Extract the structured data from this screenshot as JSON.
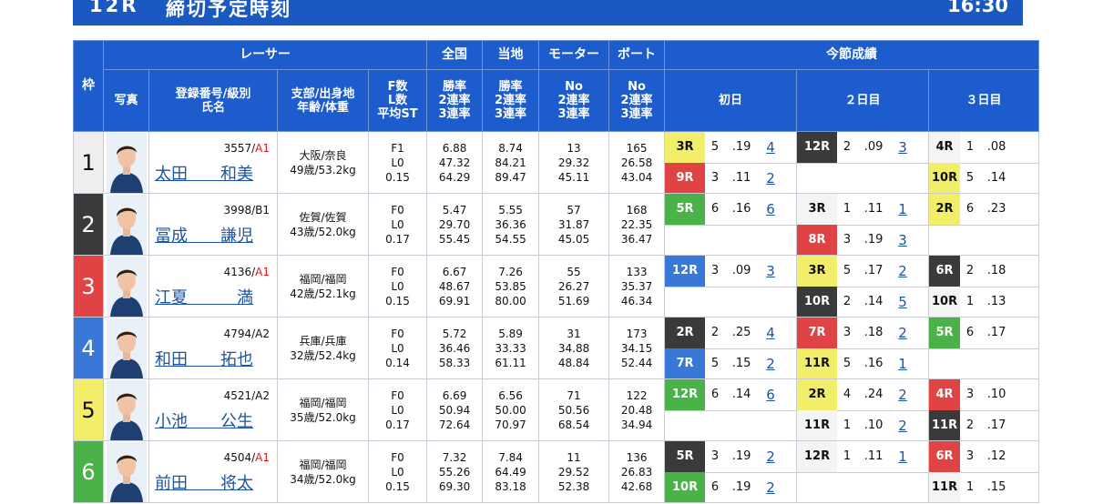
{
  "header": {
    "race": "12R",
    "deadline_label": "締切予定時刻",
    "time": "16:30"
  },
  "table": {
    "col_waku": "枠",
    "grp_racer": "レーサー",
    "grp_national": "全国",
    "grp_local": "当地",
    "grp_motor": "モーター",
    "grp_boat": "ボート",
    "grp_current": "今節成績",
    "h_photo": "写真",
    "h_reg": [
      "登録番号/級別",
      "氏名"
    ],
    "h_branch": [
      "支部/出身地",
      "年齢/体重"
    ],
    "h_f": [
      "F数",
      "L数",
      "平均ST"
    ],
    "h_nat": [
      "勝率",
      "2連率",
      "3連率"
    ],
    "h_loc": [
      "勝率",
      "2連率",
      "3連率"
    ],
    "h_mot": [
      "No",
      "2連率",
      "3連率"
    ],
    "h_boat": [
      "No",
      "2連率",
      "3連率"
    ],
    "h_day1": "初日",
    "h_day2": "２日目",
    "h_day3": "３日目"
  },
  "colors": {
    "w1": "#eeeeee",
    "w2": "#3a3a3a",
    "w3": "#e04343",
    "w4": "#3978d6",
    "w5": "#f2ee6a",
    "w6": "#4bb24a"
  },
  "racers": [
    {
      "waku": "1",
      "num": "3557/",
      "cls": "A1",
      "name": "太田　　和美",
      "branch": "大阪/奈良",
      "age": "49歳/53.2kg",
      "f": "F1",
      "l": "L0",
      "st": "0.15",
      "nat": [
        "6.88",
        "47.32",
        "64.29"
      ],
      "loc": [
        "8.74",
        "84.21",
        "89.47"
      ],
      "mot": [
        "13",
        "29.32",
        "45.11"
      ],
      "boat": [
        "165",
        "26.58",
        "43.04"
      ],
      "days": [
        [
          {
            "r": "3R",
            "c": "c5",
            "lane": "5",
            "st": ".19",
            "res": "4"
          },
          {
            "r": "9R",
            "c": "c3",
            "lane": "3",
            "st": ".11",
            "res": "2"
          }
        ],
        [
          {
            "r": "12R",
            "c": "c2",
            "lane": "2",
            "st": ".09",
            "res": "3"
          },
          null
        ],
        [
          {
            "r": "4R",
            "c": "c1",
            "lane": "1",
            "st": ".08",
            "res": ""
          },
          {
            "r": "10R",
            "c": "c5",
            "lane": "5",
            "st": ".14",
            "res": ""
          }
        ]
      ]
    },
    {
      "waku": "2",
      "num": "3998/B1",
      "cls": "",
      "name": "冨成　　謙児",
      "branch": "佐賀/佐賀",
      "age": "43歳/52.0kg",
      "f": "F0",
      "l": "L0",
      "st": "0.17",
      "nat": [
        "5.47",
        "29.70",
        "55.45"
      ],
      "loc": [
        "5.55",
        "36.36",
        "54.55"
      ],
      "mot": [
        "57",
        "31.87",
        "45.05"
      ],
      "boat": [
        "168",
        "22.35",
        "36.47"
      ],
      "days": [
        [
          {
            "r": "5R",
            "c": "c6",
            "lane": "6",
            "st": ".16",
            "res": "6"
          },
          null
        ],
        [
          {
            "r": "3R",
            "c": "c1",
            "lane": "1",
            "st": ".11",
            "res": "1"
          },
          {
            "r": "8R",
            "c": "c3",
            "lane": "3",
            "st": ".19",
            "res": "3"
          }
        ],
        [
          {
            "r": "2R",
            "c": "c5",
            "lane": "6",
            "st": ".23",
            "res": ""
          },
          null
        ]
      ]
    },
    {
      "waku": "3",
      "num": "4136/",
      "cls": "A1",
      "name": "江夏　　　満",
      "branch": "福岡/福岡",
      "age": "42歳/52.1kg",
      "f": "F0",
      "l": "L0",
      "st": "0.15",
      "nat": [
        "6.67",
        "48.67",
        "69.91"
      ],
      "loc": [
        "7.26",
        "53.85",
        "80.00"
      ],
      "mot": [
        "55",
        "26.27",
        "51.69"
      ],
      "boat": [
        "133",
        "35.37",
        "46.34"
      ],
      "days": [
        [
          {
            "r": "12R",
            "c": "c4",
            "lane": "3",
            "st": ".09",
            "res": "3"
          },
          null
        ],
        [
          {
            "r": "3R",
            "c": "c5",
            "lane": "5",
            "st": ".17",
            "res": "2"
          },
          {
            "r": "10R",
            "c": "c2",
            "lane": "2",
            "st": ".14",
            "res": "5"
          }
        ],
        [
          {
            "r": "6R",
            "c": "c2",
            "lane": "2",
            "st": ".18",
            "res": ""
          },
          {
            "r": "10R",
            "c": "c1",
            "lane": "1",
            "st": ".13",
            "res": ""
          }
        ]
      ]
    },
    {
      "waku": "4",
      "num": "4794/A2",
      "cls": "",
      "name": "和田　　拓也",
      "branch": "兵庫/兵庫",
      "age": "32歳/52.4kg",
      "f": "F0",
      "l": "L0",
      "st": "0.14",
      "nat": [
        "5.72",
        "36.46",
        "58.33"
      ],
      "loc": [
        "5.89",
        "33.33",
        "61.11"
      ],
      "mot": [
        "31",
        "34.88",
        "48.84"
      ],
      "boat": [
        "173",
        "34.15",
        "52.44"
      ],
      "days": [
        [
          {
            "r": "2R",
            "c": "c2",
            "lane": "2",
            "st": ".25",
            "res": "4"
          },
          {
            "r": "7R",
            "c": "c4",
            "lane": "5",
            "st": ".15",
            "res": "2"
          }
        ],
        [
          {
            "r": "7R",
            "c": "c3",
            "lane": "3",
            "st": ".18",
            "res": "2"
          },
          {
            "r": "11R",
            "c": "c5",
            "lane": "5",
            "st": ".16",
            "res": "1"
          }
        ],
        [
          {
            "r": "5R",
            "c": "c6",
            "lane": "6",
            "st": ".17",
            "res": ""
          },
          null
        ]
      ]
    },
    {
      "waku": "5",
      "num": "4521/A2",
      "cls": "",
      "name": "小池　　公生",
      "branch": "福岡/福岡",
      "age": "35歳/52.0kg",
      "f": "F0",
      "l": "L0",
      "st": "0.17",
      "nat": [
        "6.69",
        "50.94",
        "72.64"
      ],
      "loc": [
        "6.56",
        "50.00",
        "70.97"
      ],
      "mot": [
        "71",
        "50.56",
        "68.54"
      ],
      "boat": [
        "122",
        "20.48",
        "34.94"
      ],
      "days": [
        [
          {
            "r": "12R",
            "c": "c6",
            "lane": "6",
            "st": ".14",
            "res": "6"
          },
          null
        ],
        [
          {
            "r": "2R",
            "c": "c5",
            "lane": "4",
            "st": ".24",
            "res": "2"
          },
          {
            "r": "11R",
            "c": "c1",
            "lane": "1",
            "st": ".10",
            "res": "2"
          }
        ],
        [
          {
            "r": "4R",
            "c": "c3",
            "lane": "3",
            "st": ".10",
            "res": ""
          },
          {
            "r": "11R",
            "c": "c2",
            "lane": "2",
            "st": ".17",
            "res": ""
          }
        ]
      ]
    },
    {
      "waku": "6",
      "num": "4504/",
      "cls": "A1",
      "name": "前田　　将太",
      "branch": "福岡/福岡",
      "age": "34歳/52.0kg",
      "f": "F0",
      "l": "L0",
      "st": "0.15",
      "nat": [
        "7.32",
        "55.26",
        "69.30"
      ],
      "loc": [
        "7.84",
        "64.49",
        "83.18"
      ],
      "mot": [
        "11",
        "29.52",
        "52.38"
      ],
      "boat": [
        "136",
        "26.83",
        "42.68"
      ],
      "days": [
        [
          {
            "r": "5R",
            "c": "c2",
            "lane": "3",
            "st": ".19",
            "res": "2"
          },
          {
            "r": "10R",
            "c": "c6",
            "lane": "6",
            "st": ".19",
            "res": "2"
          }
        ],
        [
          {
            "r": "12R",
            "c": "c1",
            "lane": "1",
            "st": ".11",
            "res": "1"
          },
          null
        ],
        [
          {
            "r": "6R",
            "c": "c3",
            "lane": "3",
            "st": ".12",
            "res": ""
          },
          {
            "r": "11R",
            "c": "c1",
            "lane": "1",
            "st": ".15",
            "res": ""
          }
        ]
      ]
    }
  ]
}
